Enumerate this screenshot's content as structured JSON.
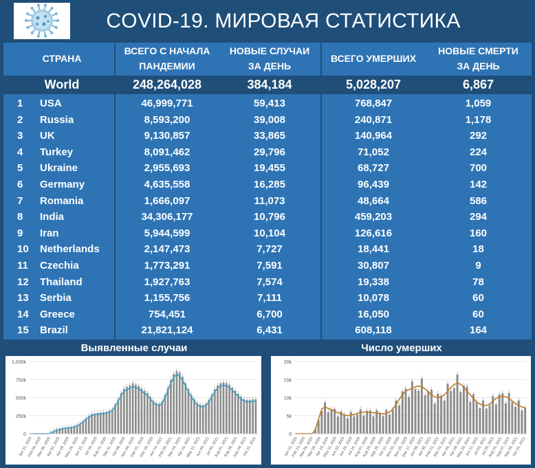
{
  "header": {
    "title": "COVID-19. МИРОВАЯ СТАТИСТИКА"
  },
  "colors": {
    "bg": "#1f4e79",
    "table": "#2e74b5",
    "line1": "#3a9fc7",
    "line2": "#c07a24",
    "bars": "#8c8c8c"
  },
  "table": {
    "columns": [
      [
        "СТРАНА"
      ],
      [
        "ВСЕГО С НАЧАЛА",
        "ПАНДЕМИИ"
      ],
      [
        "НОВЫЕ СЛУЧАИ",
        "ЗА ДЕНЬ"
      ],
      [
        "ВСЕГО УМЕРШИХ"
      ],
      [
        "НОВЫЕ СМЕРТИ",
        "ЗА ДЕНЬ"
      ]
    ],
    "world": {
      "name": "World",
      "total": "248,264,028",
      "new": "384,184",
      "deaths": "5,028,207",
      "new_deaths": "6,867"
    },
    "rows": [
      {
        "rank": "1",
        "country": "USA",
        "total": "46,999,771",
        "new": "59,413",
        "deaths": "768,847",
        "new_deaths": "1,059"
      },
      {
        "rank": "2",
        "country": "Russia",
        "total": "8,593,200",
        "new": "39,008",
        "deaths": "240,871",
        "new_deaths": "1,178"
      },
      {
        "rank": "3",
        "country": "UK",
        "total": "9,130,857",
        "new": "33,865",
        "deaths": "140,964",
        "new_deaths": "292"
      },
      {
        "rank": "4",
        "country": "Turkey",
        "total": "8,091,462",
        "new": "29,796",
        "deaths": "71,052",
        "new_deaths": "224"
      },
      {
        "rank": "5",
        "country": "Ukraine",
        "total": "2,955,693",
        "new": "19,455",
        "deaths": "68,727",
        "new_deaths": "700"
      },
      {
        "rank": "6",
        "country": "Germany",
        "total": "4,635,558",
        "new": "16,285",
        "deaths": "96,439",
        "new_deaths": "142"
      },
      {
        "rank": "7",
        "country": "Romania",
        "total": "1,666,097",
        "new": "11,073",
        "deaths": "48,664",
        "new_deaths": "586"
      },
      {
        "rank": "8",
        "country": "India",
        "total": "34,306,177",
        "new": "10,796",
        "deaths": "459,203",
        "new_deaths": "294"
      },
      {
        "rank": "9",
        "country": "Iran",
        "total": "5,944,599",
        "new": "10,104",
        "deaths": "126,616",
        "new_deaths": "160"
      },
      {
        "rank": "10",
        "country": "Netherlands",
        "total": "2,147,473",
        "new": "7,727",
        "deaths": "18,441",
        "new_deaths": "18"
      },
      {
        "rank": "11",
        "country": "Czechia",
        "total": "1,773,291",
        "new": "7,591",
        "deaths": "30,807",
        "new_deaths": "9"
      },
      {
        "rank": "12",
        "country": "Thailand",
        "total": "1,927,763",
        "new": "7,574",
        "deaths": "19,338",
        "new_deaths": "78"
      },
      {
        "rank": "13",
        "country": "Serbia",
        "total": "1,155,756",
        "new": "7,111",
        "deaths": "10,078",
        "new_deaths": "60"
      },
      {
        "rank": "14",
        "country": "Greece",
        "total": "754,451",
        "new": "6,700",
        "deaths": "16,050",
        "new_deaths": "60"
      },
      {
        "rank": "15",
        "country": "Brazil",
        "total": "21,821,124",
        "new": "6,431",
        "deaths": "608,118",
        "new_deaths": "164"
      }
    ]
  },
  "chart_data": [
    {
      "type": "bar",
      "title": "Выявленные случаи",
      "ylim": [
        0,
        1000000
      ],
      "y_ticks": [
        0,
        250000,
        500000,
        750000,
        1000000
      ],
      "y_tick_labels": [
        "0",
        "250k",
        "500k",
        "750k",
        "1,000k"
      ],
      "x_tick_labels": [
        "Jan 22, 2020",
        "Feb 08, 2020",
        "Mar 06, 2020",
        "Apr 02, 2020",
        "Apr 29, 2020",
        "May 26, 2020",
        "Jun 22, 2020",
        "Jul 19, 2020",
        "Aug 15, 2020",
        "Sep 11, 2020",
        "Oct 08, 2020",
        "Nov 04, 2020",
        "Dec 01, 2020",
        "Dec 28, 2020",
        "Jan 24, 2021",
        "Feb 20, 2021",
        "Mar 19, 2021",
        "Apr 15, 2021",
        "May 12, 2021",
        "Jun 08, 2021",
        "Jul 05, 2021",
        "Aug 01, 2021",
        "Aug 28, 2021",
        "Sep 24, 2021",
        "Oct 21, 2021"
      ],
      "line_values": [
        0,
        0,
        0,
        0,
        0,
        0,
        0,
        10000,
        30000,
        50000,
        60000,
        70000,
        75000,
        80000,
        85000,
        95000,
        110000,
        130000,
        160000,
        200000,
        230000,
        255000,
        265000,
        270000,
        275000,
        280000,
        285000,
        300000,
        320000,
        380000,
        450000,
        530000,
        590000,
        610000,
        630000,
        650000,
        640000,
        620000,
        590000,
        560000,
        530000,
        480000,
        430000,
        400000,
        390000,
        420000,
        500000,
        600000,
        700000,
        780000,
        820000,
        800000,
        740000,
        660000,
        580000,
        510000,
        450000,
        400000,
        380000,
        370000,
        390000,
        440000,
        510000,
        580000,
        630000,
        660000,
        670000,
        660000,
        640000,
        600000,
        560000,
        520000,
        480000,
        450000,
        440000,
        440000,
        450000,
        450000
      ],
      "bar_values": [
        0,
        0,
        0,
        0,
        0,
        0,
        0,
        14000,
        36000,
        55000,
        65000,
        78000,
        80000,
        90000,
        89000,
        102000,
        118000,
        140000,
        171000,
        212000,
        245000,
        270000,
        278000,
        285000,
        290000,
        295000,
        300000,
        318000,
        340000,
        402000,
        475000,
        560000,
        625000,
        650000,
        669000,
        700000,
        680000,
        660000,
        628000,
        596000,
        563000,
        510000,
        456000,
        424000,
        414000,
        447000,
        532000,
        637000,
        743000,
        828000,
        870000,
        850000,
        788000,
        700000,
        617000,
        540000,
        478000,
        425000,
        403000,
        393000,
        415000,
        468000,
        541000,
        615000,
        670000,
        700000,
        712000,
        700000,
        680000,
        638000,
        595000,
        552000,
        510000,
        477000,
        467000,
        468000,
        477000,
        478000
      ]
    },
    {
      "type": "bar",
      "title": "Число умерших",
      "ylim": [
        0,
        20000
      ],
      "y_ticks": [
        0,
        5000,
        10000,
        15000,
        20000
      ],
      "y_tick_labels": [
        "0",
        "5k",
        "10k",
        "15k",
        "20k"
      ],
      "x_tick_labels": [
        "Jan 22, 2020",
        "Feb 13, 2020",
        "Mar 06, 2020",
        "Mar 29, 2020",
        "Apr 19, 2020",
        "May 11, 2020",
        "Jun 02, 2020",
        "Jun 24, 2020",
        "Jul 16, 2020",
        "Aug 07, 2020",
        "Aug 29, 2020",
        "Sep 20, 2020",
        "Oct 12, 2020",
        "Nov 03, 2020",
        "Nov 25, 2020",
        "Dec 17, 2020",
        "Jan 08, 2021",
        "Jan 30, 2021",
        "Feb 21, 2021",
        "Mar 15, 2021",
        "Apr 06, 2021",
        "Apr 28, 2021",
        "May 20, 2021",
        "Jun 11, 2021",
        "Jul 03, 2021",
        "Jul 25, 2021",
        "Aug 16, 2021",
        "Sep 07, 2021",
        "Sep 29, 2021",
        "Oct 21, 2021"
      ],
      "line_values": [
        0,
        0,
        0,
        0,
        0,
        0,
        1000,
        4000,
        6800,
        7400,
        7000,
        6600,
        6200,
        5800,
        5500,
        5200,
        5000,
        5100,
        5300,
        5600,
        5800,
        6000,
        6000,
        5900,
        5800,
        5700,
        5600,
        5500,
        5600,
        6000,
        6800,
        8000,
        9500,
        10800,
        11800,
        12200,
        12500,
        13000,
        13200,
        13000,
        12400,
        11600,
        10800,
        10200,
        10000,
        10200,
        10800,
        11800,
        12800,
        13600,
        14000,
        13700,
        12800,
        11800,
        10800,
        9700,
        8800,
        8200,
        7800,
        7800,
        8200,
        9000,
        9800,
        10200,
        10400,
        10200,
        9800,
        9000,
        8400,
        7800,
        7400,
        7200
      ]
    }
  ]
}
